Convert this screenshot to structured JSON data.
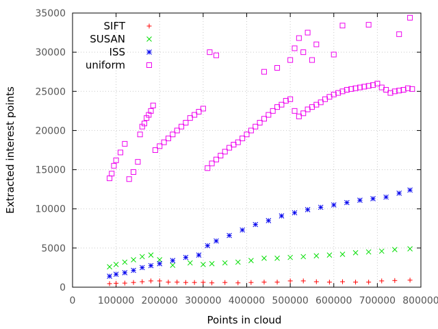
{
  "chart_data": {
    "type": "scatter",
    "title": "",
    "xlabel": "Points in cloud",
    "ylabel": "Extracted interest points",
    "xlim": [
      0,
      800000
    ],
    "ylim": [
      0,
      35000
    ],
    "x_ticks": [
      0,
      100000,
      200000,
      300000,
      400000,
      500000,
      600000,
      700000,
      800000
    ],
    "y_ticks": [
      0,
      5000,
      10000,
      15000,
      20000,
      25000,
      30000,
      35000
    ],
    "x_tick_labels": [
      "0",
      "100000",
      "200000",
      "300000",
      "400000",
      "500000",
      "600000",
      "700000",
      "800000"
    ],
    "y_tick_labels": [
      "0",
      "5000",
      "10000",
      "15000",
      "20000",
      "25000",
      "30000",
      "35000"
    ],
    "grid": true,
    "legend_position": "top-left",
    "series": [
      {
        "name": "SIFT",
        "color": "#ff0000",
        "marker": "plus",
        "x": [
          85000,
          100000,
          120000,
          140000,
          160000,
          180000,
          200000,
          220000,
          240000,
          260000,
          280000,
          300000,
          320000,
          350000,
          380000,
          410000,
          440000,
          470000,
          500000,
          530000,
          560000,
          590000,
          620000,
          650000,
          680000,
          710000,
          740000,
          775000
        ],
        "y": [
          450,
          500,
          520,
          600,
          700,
          800,
          800,
          650,
          650,
          600,
          600,
          620,
          550,
          600,
          550,
          600,
          650,
          650,
          800,
          800,
          700,
          650,
          700,
          650,
          650,
          800,
          850,
          900
        ]
      },
      {
        "name": "SUSAN",
        "color": "#00dd00",
        "marker": "cross",
        "x": [
          85000,
          100000,
          120000,
          140000,
          160000,
          180000,
          200000,
          230000,
          270000,
          300000,
          320000,
          350000,
          380000,
          410000,
          440000,
          470000,
          500000,
          530000,
          560000,
          590000,
          620000,
          650000,
          680000,
          710000,
          740000,
          775000
        ],
        "y": [
          2600,
          2900,
          3200,
          3500,
          3900,
          4100,
          3500,
          2800,
          3100,
          2900,
          3000,
          3100,
          3200,
          3400,
          3700,
          3700,
          3800,
          3900,
          4000,
          4100,
          4200,
          4400,
          4500,
          4600,
          4800,
          4900
        ]
      },
      {
        "name": "ISS",
        "color": "#0000ee",
        "marker": "star",
        "x": [
          85000,
          100000,
          120000,
          140000,
          160000,
          180000,
          200000,
          230000,
          260000,
          290000,
          310000,
          330000,
          360000,
          390000,
          420000,
          450000,
          480000,
          510000,
          540000,
          570000,
          600000,
          630000,
          660000,
          690000,
          720000,
          750000,
          775000
        ],
        "y": [
          1400,
          1650,
          1850,
          2150,
          2500,
          2750,
          3000,
          3400,
          3800,
          4100,
          5300,
          5900,
          6600,
          7300,
          8000,
          8500,
          9100,
          9500,
          9900,
          10200,
          10500,
          10800,
          11100,
          11300,
          11500,
          12000,
          12400
        ]
      },
      {
        "name": "uniform",
        "color": "#ee00ee",
        "marker": "square",
        "x": [
          85000,
          90000,
          95000,
          100000,
          110000,
          120000,
          130000,
          140000,
          150000,
          155000,
          160000,
          165000,
          170000,
          175000,
          180000,
          185000,
          190000,
          200000,
          210000,
          220000,
          230000,
          240000,
          250000,
          260000,
          270000,
          280000,
          290000,
          300000,
          310000,
          320000,
          330000,
          340000,
          350000,
          360000,
          370000,
          380000,
          390000,
          400000,
          410000,
          420000,
          430000,
          440000,
          450000,
          460000,
          470000,
          480000,
          490000,
          500000,
          510000,
          520000,
          530000,
          540000,
          550000,
          560000,
          570000,
          580000,
          590000,
          600000,
          610000,
          620000,
          630000,
          640000,
          650000,
          660000,
          670000,
          680000,
          690000,
          700000,
          710000,
          720000,
          730000,
          740000,
          750000,
          760000,
          770000,
          780000,
          315000,
          330000,
          440000,
          470000,
          500000,
          510000,
          520000,
          530000,
          540000,
          550000,
          560000,
          600000,
          620000,
          680000,
          750000,
          775000
        ],
        "y": [
          13900,
          14500,
          15500,
          16200,
          17200,
          18300,
          13800,
          14700,
          16000,
          19500,
          20500,
          20900,
          21600,
          22000,
          22500,
          23200,
          17500,
          18000,
          18500,
          19000,
          19500,
          20000,
          20500,
          21000,
          21600,
          22000,
          22400,
          22800,
          15200,
          15800,
          16300,
          16800,
          17300,
          17800,
          18200,
          18500,
          19000,
          19500,
          20000,
          20500,
          21000,
          21500,
          22000,
          22500,
          23000,
          23300,
          23800,
          24000,
          22500,
          21800,
          22200,
          22700,
          23000,
          23300,
          23600,
          24000,
          24300,
          24600,
          24800,
          25000,
          25200,
          25300,
          25400,
          25500,
          25600,
          25700,
          25800,
          26000,
          25500,
          25200,
          24800,
          25000,
          25100,
          25200,
          25400,
          25300,
          30000,
          29600,
          27500,
          28000,
          29000,
          30500,
          31800,
          30000,
          32500,
          29000,
          31000,
          29700,
          33400,
          33500,
          32300,
          34400
        ]
      }
    ]
  }
}
